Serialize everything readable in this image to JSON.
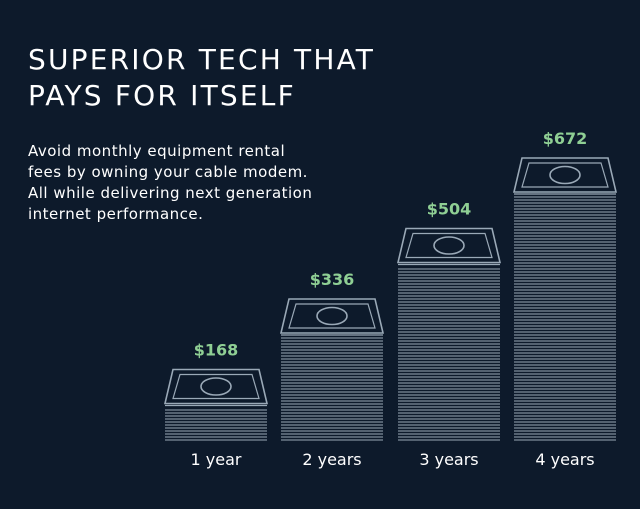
{
  "headline": {
    "line1": "SUPERIOR TECH THAT",
    "line2": "PAYS FOR ITSELF"
  },
  "body": {
    "lines": [
      "Avoid monthly equipment rental",
      "fees by owning your cable modem.",
      "All while delivering next generation",
      "internet performance."
    ]
  },
  "colors": {
    "background": "#0d1a2b",
    "stack": "#9aa9b7",
    "value_label": "#8fcf94",
    "text": "#ffffff"
  },
  "chart_data": {
    "type": "bar",
    "categories": [
      "1 year",
      "2 years",
      "3 years",
      "4 years"
    ],
    "values": [
      168,
      336,
      504,
      672
    ],
    "value_labels": [
      "$168",
      "$336",
      "$504",
      "$672"
    ],
    "ylim": [
      0,
      672
    ],
    "title": "",
    "xlabel": "",
    "ylabel": "",
    "grid": false,
    "mark_icon": "cash-bill-icon"
  }
}
